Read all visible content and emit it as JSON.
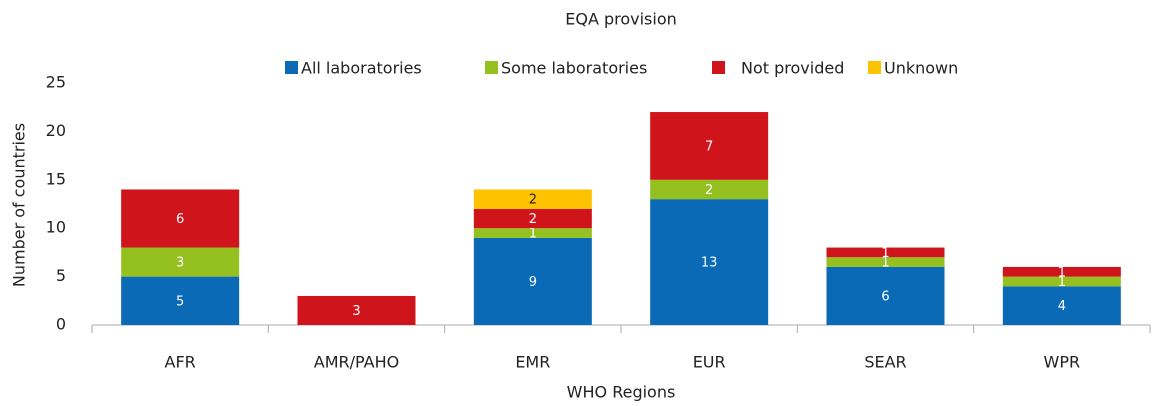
{
  "chart_data": {
    "type": "stacked_bar",
    "title": "EQA provision",
    "xlabel": "WHO Regions",
    "ylabel": "Number of countries",
    "categories": [
      "AFR",
      "AMR/PAHO",
      "EMR",
      "EUR",
      "SEAR",
      "WPR"
    ],
    "series": [
      {
        "name": "All laboratories",
        "color": "#0a6ab5",
        "values": [
          5,
          0,
          9,
          13,
          6,
          4
        ]
      },
      {
        "name": "Some laboratories",
        "color": "#94c11f",
        "values": [
          3,
          0,
          1,
          2,
          1,
          1
        ]
      },
      {
        "name": "Not provided",
        "color": "#d0141b",
        "values": [
          6,
          3,
          2,
          7,
          1,
          1
        ]
      },
      {
        "name": "Unknown",
        "color": "#fdc300",
        "values": [
          0,
          0,
          2,
          0,
          0,
          0
        ]
      }
    ],
    "ylim": [
      0,
      25
    ],
    "yticks": [
      0,
      5,
      10,
      15,
      20,
      25
    ],
    "legend": "top"
  }
}
